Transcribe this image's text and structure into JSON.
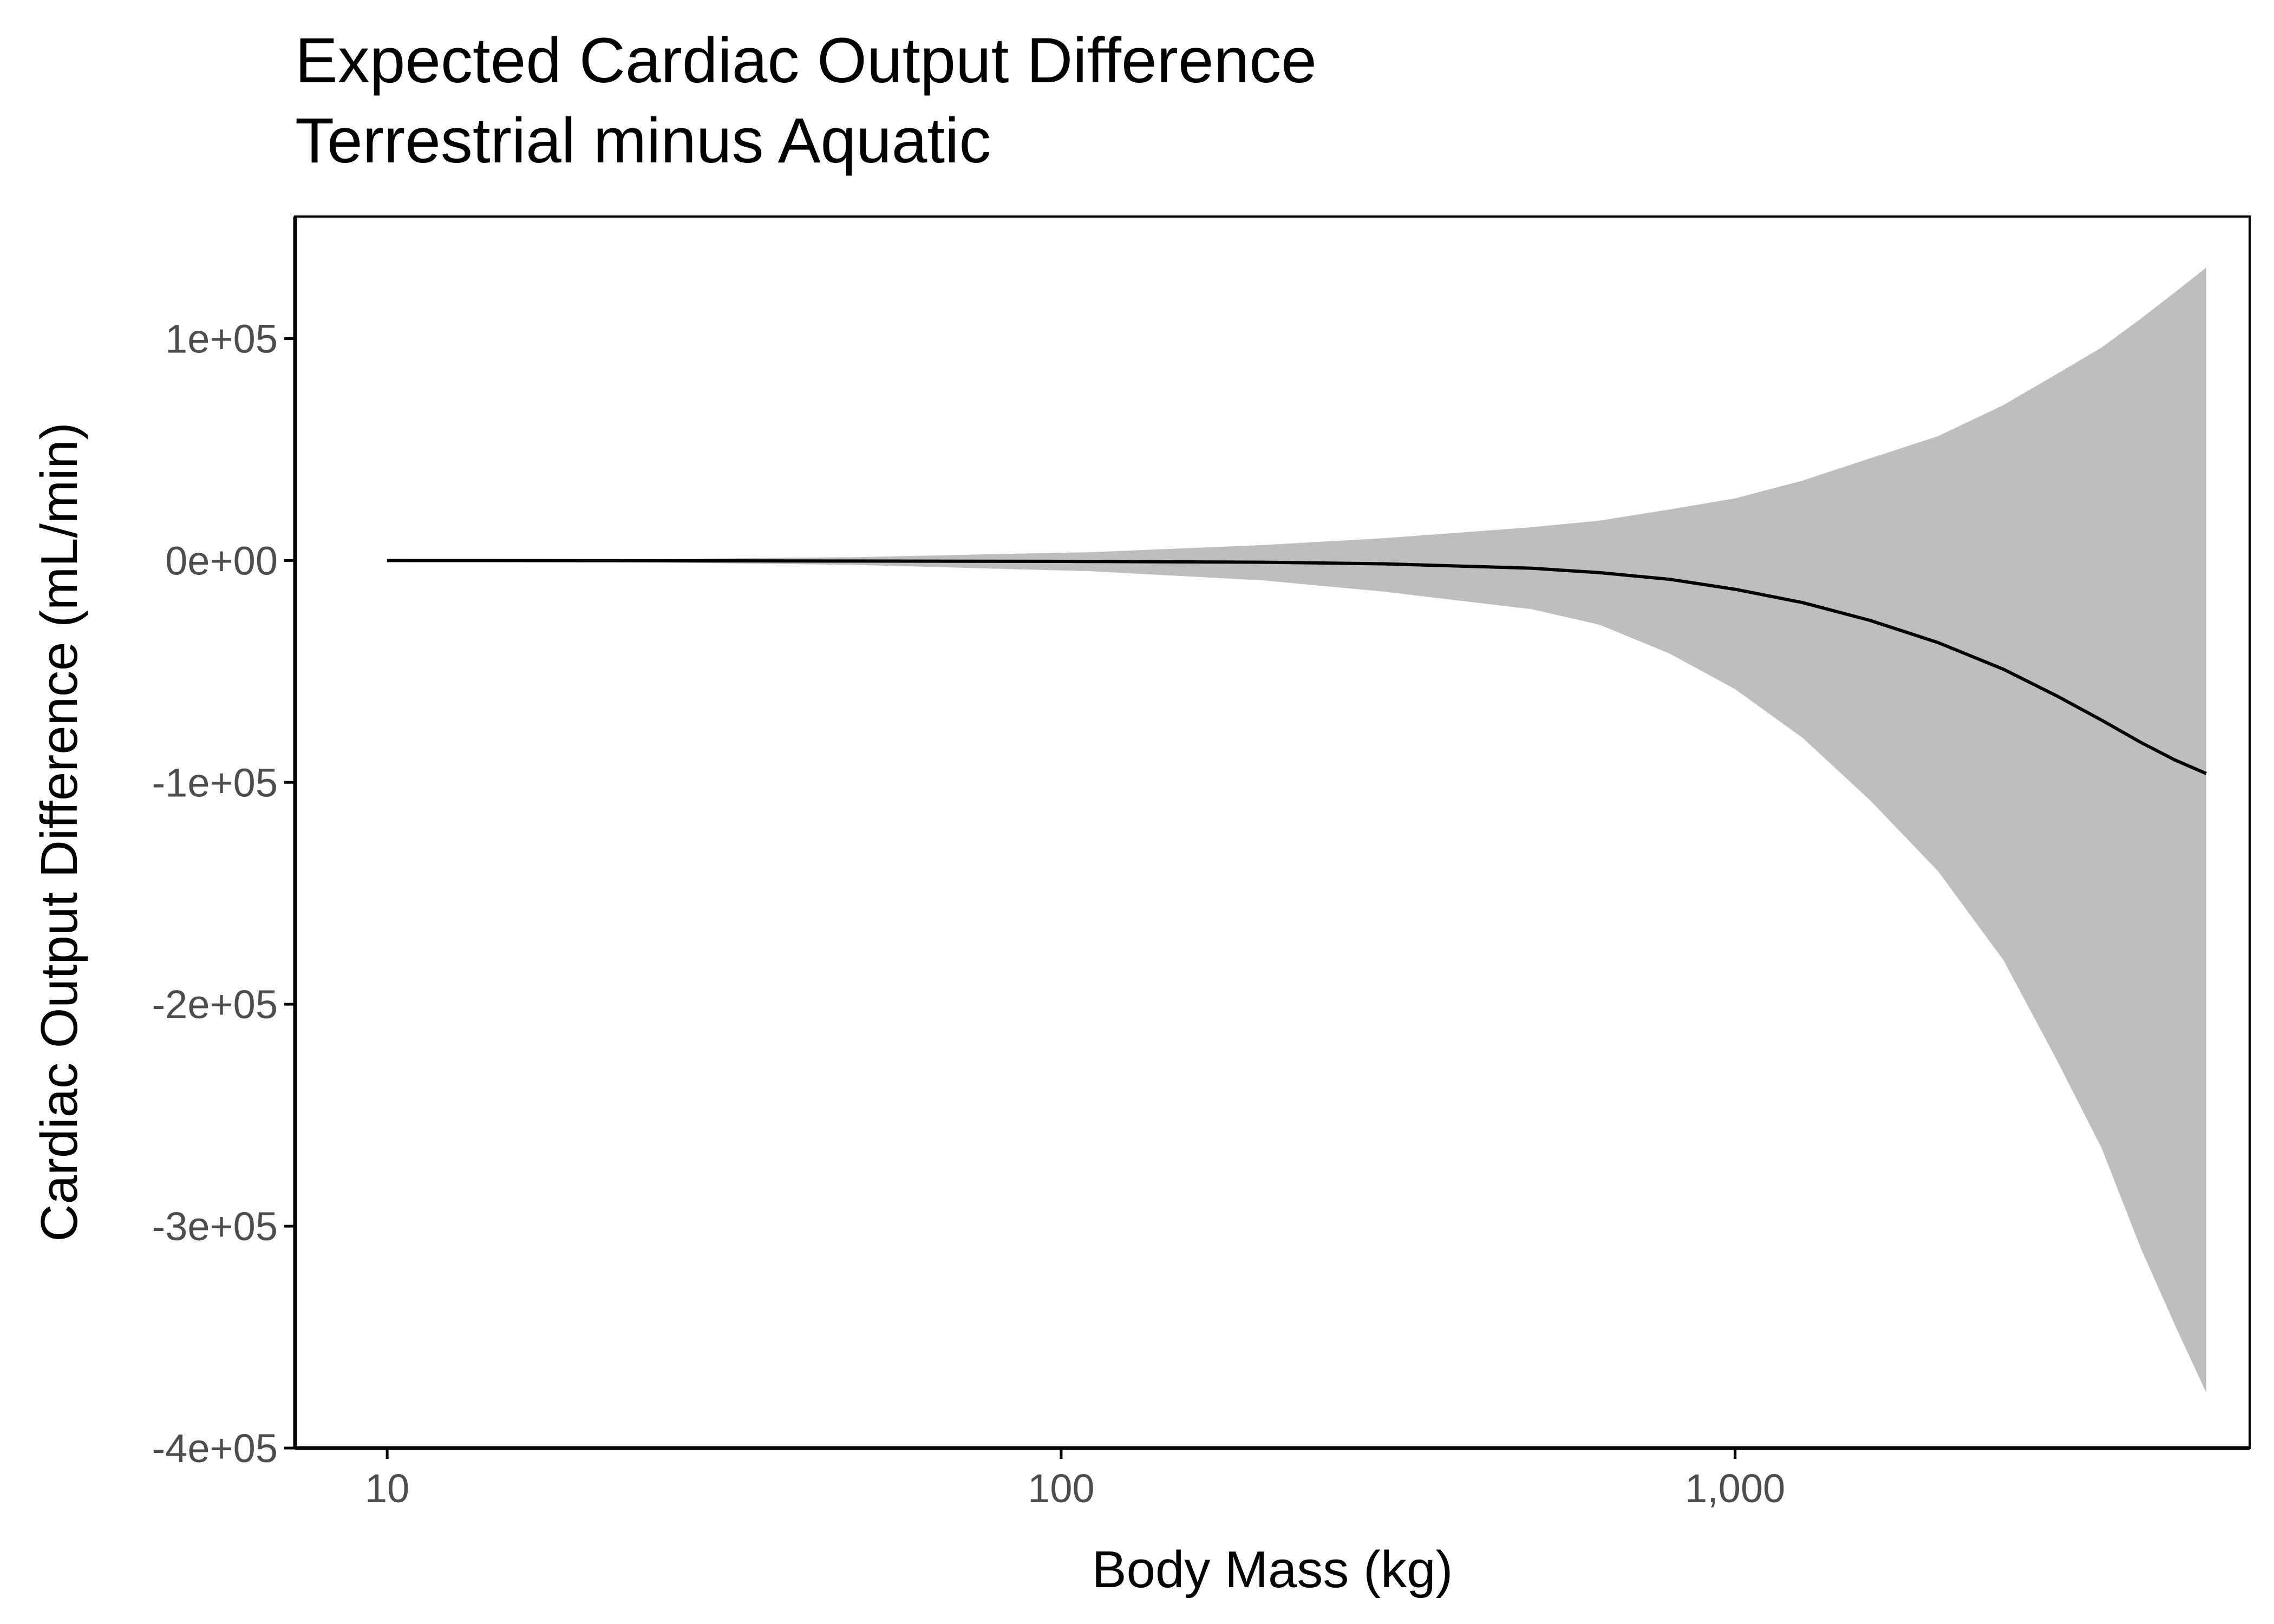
{
  "chart_data": {
    "type": "line",
    "title": "Expected Cardiac Output Difference",
    "subtitle": "Terrestrial minus Aquatic",
    "xlabel": "Body Mass (kg)",
    "ylabel": "Cardiac Output Difference (mL/min)",
    "x_scale": "log10",
    "xlim": [
      7.3,
      5800
    ],
    "ylim": [
      -400000,
      155000
    ],
    "x_ticks": [
      {
        "value": 10,
        "label": "10"
      },
      {
        "value": 100,
        "label": "100"
      },
      {
        "value": 1000,
        "label": "1,000"
      }
    ],
    "y_ticks": [
      {
        "value": 100000,
        "label": "1e+05"
      },
      {
        "value": 0,
        "label": "0e+00"
      },
      {
        "value": -100000,
        "label": "-1e+05"
      },
      {
        "value": -200000,
        "label": "-2e+05"
      },
      {
        "value": -300000,
        "label": "-3e+05"
      },
      {
        "value": -400000,
        "label": "-4e+05"
      }
    ],
    "grid": false,
    "colors": {
      "line": "#000000",
      "ribbon": "#bebebe",
      "tick_label": "#4d4d4d"
    },
    "series": [
      {
        "x": [
          10,
          20,
          50,
          100,
          110,
          200,
          300,
          500,
          630,
          800,
          1000,
          1260,
          1585,
          2000,
          2500,
          3000,
          3500,
          4000,
          4500,
          5000
        ],
        "y": [
          0,
          -80,
          -250,
          -400,
          -450,
          -800,
          -1500,
          -3500,
          -5500,
          -8500,
          -13000,
          -19000,
          -27000,
          -37000,
          -49000,
          -61000,
          -72000,
          -82000,
          -90000,
          -96000
        ],
        "lower": [
          0,
          -500,
          -2000,
          -4500,
          -4800,
          -9000,
          -14000,
          -22000,
          -29000,
          -42000,
          -58000,
          -80000,
          -108000,
          -140000,
          -180000,
          -225000,
          -265000,
          -310000,
          -345000,
          -375000
        ],
        "upper": [
          0,
          400,
          1500,
          3500,
          3700,
          7000,
          10000,
          15000,
          18000,
          23000,
          28000,
          36000,
          46000,
          56000,
          70000,
          84000,
          96000,
          109000,
          121000,
          132000
        ]
      }
    ]
  }
}
